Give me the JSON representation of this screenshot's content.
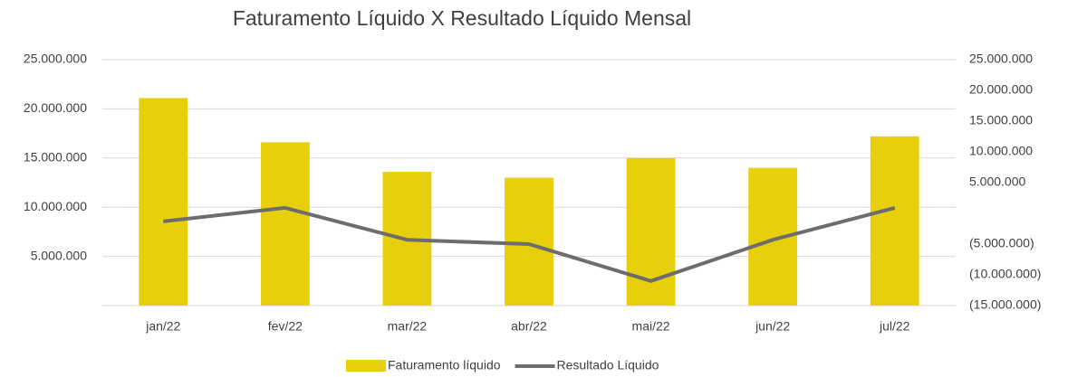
{
  "chart_data": {
    "type": "bar-line",
    "title": "Faturamento Líquido X Resultado Líquido Mensal",
    "categories": [
      "jan/22",
      "fev/22",
      "mar/22",
      "abr/22",
      "mai/22",
      "jun/22",
      "jul/22"
    ],
    "series": [
      {
        "name": "Faturamento líquido",
        "type": "bar",
        "color": "#e8cf0c",
        "axis": "y",
        "values": [
          21100000,
          16600000,
          13600000,
          13000000,
          15000000,
          14000000,
          17200000
        ]
      },
      {
        "name": "Resultado Líquido",
        "type": "line",
        "color": "#6d6d6d",
        "axis": "y2",
        "values": [
          -1300000,
          900000,
          -4300000,
          -5000000,
          -11000000,
          -4300000,
          900000
        ]
      }
    ],
    "ylim": [
      0,
      25000000
    ],
    "yticks": [
      {
        "value": 5000000,
        "label": "5.000.000"
      },
      {
        "value": 10000000,
        "label": "10.000.000"
      },
      {
        "value": 15000000,
        "label": "15.000.000"
      },
      {
        "value": 20000000,
        "label": "20.000.000"
      },
      {
        "value": 25000000,
        "label": "25.000.000"
      }
    ],
    "y2lim": [
      -15000000,
      25000000
    ],
    "y2ticks": [
      {
        "value": -15000000,
        "label": "(15.000.000)"
      },
      {
        "value": -10000000,
        "label": "(10.000.000)"
      },
      {
        "value": -5000000,
        "label": "(5.000.000)"
      },
      {
        "value": 5000000,
        "label": "5.000.000"
      },
      {
        "value": 10000000,
        "label": "10.000.000"
      },
      {
        "value": 15000000,
        "label": "15.000.000"
      },
      {
        "value": 20000000,
        "label": "20.000.000"
      },
      {
        "value": 25000000,
        "label": "25.000.000"
      }
    ],
    "grid": true,
    "legend": "bottom"
  }
}
